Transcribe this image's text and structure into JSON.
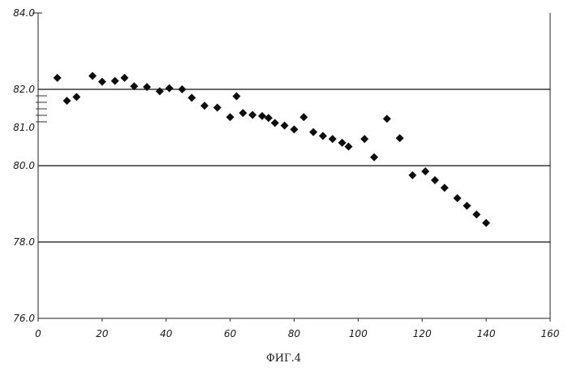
{
  "chart_data": {
    "type": "scatter",
    "caption": "ФИГ.4",
    "xlim": [
      0,
      160
    ],
    "ylim": [
      76,
      84
    ],
    "x_ticks": [
      "0",
      "20",
      "40",
      "60",
      "80",
      "100",
      "120",
      "140",
      "160"
    ],
    "y_ticks": [
      "76.0",
      "78.0",
      "80.0",
      "82.0",
      "84.0"
    ],
    "y_extra_labels": [
      "81.0"
    ],
    "grid_lines_y": [
      78,
      80,
      82
    ],
    "marker": "diamond",
    "marker_color": "#0d0d0d",
    "series": [
      {
        "points": [
          [
            6,
            82.3
          ],
          [
            9,
            81.7
          ],
          [
            12,
            81.8
          ],
          [
            17,
            82.35
          ],
          [
            20,
            82.2
          ],
          [
            24,
            82.22
          ],
          [
            27,
            82.3
          ],
          [
            30,
            82.08
          ],
          [
            34,
            82.06
          ],
          [
            38,
            81.95
          ],
          [
            41,
            82.03
          ],
          [
            45,
            82.0
          ],
          [
            48,
            81.78
          ],
          [
            52,
            81.57
          ],
          [
            56,
            81.52
          ],
          [
            60,
            81.27
          ],
          [
            62,
            81.82
          ],
          [
            64,
            81.38
          ],
          [
            67,
            81.33
          ],
          [
            70,
            81.3
          ],
          [
            72,
            81.25
          ],
          [
            74,
            81.12
          ],
          [
            77,
            81.05
          ],
          [
            80,
            80.95
          ],
          [
            83,
            81.27
          ],
          [
            86,
            80.88
          ],
          [
            89,
            80.78
          ],
          [
            92,
            80.7
          ],
          [
            95,
            80.6
          ],
          [
            97,
            80.5
          ],
          [
            102,
            80.7
          ],
          [
            105,
            80.22
          ],
          [
            109,
            81.23
          ],
          [
            113,
            80.72
          ],
          [
            117,
            79.75
          ],
          [
            121,
            79.85
          ],
          [
            124,
            79.62
          ],
          [
            127,
            79.42
          ],
          [
            131,
            79.15
          ],
          [
            134,
            78.95
          ],
          [
            137,
            78.72
          ],
          [
            140,
            78.5
          ]
        ]
      }
    ]
  }
}
